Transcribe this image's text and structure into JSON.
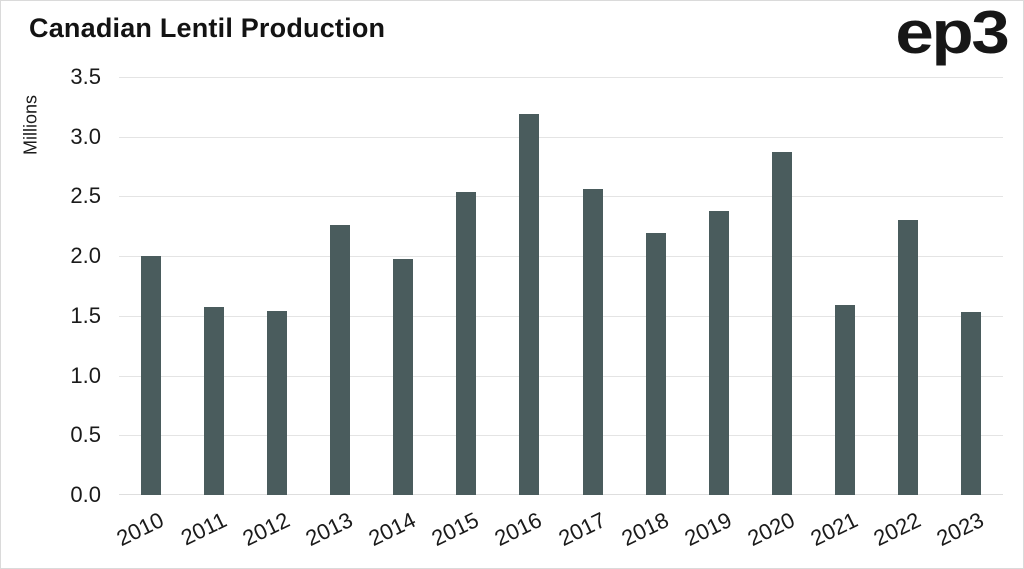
{
  "header": {
    "title": "Canadian Lentil Production",
    "logo": "ep3"
  },
  "colors": {
    "bar": "#4a5c5d",
    "grid": "#e4e4e4",
    "baseline": "#dedede",
    "text": "#1a1a1a",
    "border": "#dadada"
  },
  "chart_data": {
    "type": "bar",
    "title": "Canadian Lentil Production",
    "xlabel": "",
    "ylabel": "Millions",
    "categories": [
      "2010",
      "2011",
      "2012",
      "2013",
      "2014",
      "2015",
      "2016",
      "2017",
      "2018",
      "2019",
      "2020",
      "2021",
      "2022",
      "2023"
    ],
    "values": [
      2.0,
      1.57,
      1.54,
      2.26,
      1.98,
      2.54,
      3.19,
      2.56,
      2.19,
      2.38,
      2.87,
      1.59,
      2.3,
      1.53
    ],
    "ylim": [
      0,
      3.5
    ],
    "yticks": [
      0.0,
      0.5,
      1.0,
      1.5,
      2.0,
      2.5,
      3.0,
      3.5
    ],
    "ytick_labels": [
      "0.0",
      "0.5",
      "1.0",
      "1.5",
      "2.0",
      "2.5",
      "3.0",
      "3.5"
    ],
    "grid": true,
    "legend": false,
    "bar_color": "#4a5c5d"
  }
}
